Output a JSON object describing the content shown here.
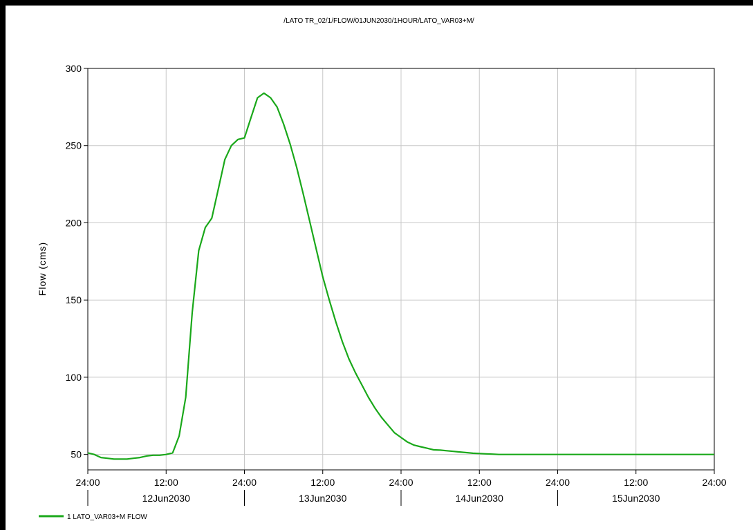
{
  "chart_data": {
    "type": "line",
    "title": "/LATO TR_02/1/FLOW/01JUN2030/1HOUR/LATO_VAR03+M/",
    "ylabel": "Flow (cms)",
    "xlabel": "",
    "ylim": [
      40,
      300
    ],
    "yticks": [
      50,
      100,
      150,
      200,
      250,
      300
    ],
    "xlim": [
      0,
      96
    ],
    "x_unit": "hours since 12Jun2030 00:00",
    "xticks": [
      {
        "hour": 0,
        "label": "24:00"
      },
      {
        "hour": 12,
        "label": "12:00"
      },
      {
        "hour": 24,
        "label": "24:00"
      },
      {
        "hour": 36,
        "label": "12:00"
      },
      {
        "hour": 48,
        "label": "24:00"
      },
      {
        "hour": 60,
        "label": "12:00"
      },
      {
        "hour": 72,
        "label": "24:00"
      },
      {
        "hour": 84,
        "label": "12:00"
      },
      {
        "hour": 96,
        "label": "24:00"
      }
    ],
    "day_labels": [
      {
        "hour": 12,
        "label": "12Jun2030"
      },
      {
        "hour": 36,
        "label": "13Jun2030"
      },
      {
        "hour": 60,
        "label": "14Jun2030"
      },
      {
        "hour": 84,
        "label": "15Jun2030"
      }
    ],
    "day_separators": [
      0,
      24,
      48,
      72
    ],
    "grid": true,
    "legend_position": "bottom-left",
    "series": [
      {
        "name": "1 LATO_VAR03+M FLOW",
        "color": "#1aa81a",
        "x": [
          0,
          1,
          2,
          3,
          4,
          5,
          6,
          7,
          8,
          9,
          10,
          11,
          12,
          13,
          14,
          15,
          16,
          17,
          18,
          19,
          20,
          21,
          22,
          23,
          24,
          25,
          26,
          27,
          28,
          29,
          30,
          31,
          32,
          33,
          34,
          35,
          36,
          37,
          38,
          39,
          40,
          41,
          42,
          43,
          44,
          45,
          46,
          47,
          48,
          49,
          50,
          51,
          52,
          53,
          54,
          55,
          56,
          57,
          58,
          59,
          60,
          61,
          62,
          63,
          64,
          65,
          66,
          72,
          84,
          96
        ],
        "y": [
          51,
          50,
          48,
          47.5,
          47,
          47,
          47,
          47.5,
          48,
          49,
          49.5,
          49.5,
          50,
          51,
          62,
          87,
          142,
          182,
          197,
          203,
          222,
          241,
          250,
          254,
          255,
          268,
          281,
          284,
          281,
          275,
          264,
          251,
          236,
          219,
          201,
          183,
          165,
          150,
          136,
          123,
          112,
          103,
          95,
          87,
          80,
          74,
          69,
          64,
          61,
          58,
          56,
          55,
          54,
          53,
          52.8,
          52.4,
          52,
          51.6,
          51.2,
          50.8,
          50.6,
          50.4,
          50.2,
          50,
          50,
          50,
          50,
          50,
          50,
          50
        ]
      }
    ]
  }
}
